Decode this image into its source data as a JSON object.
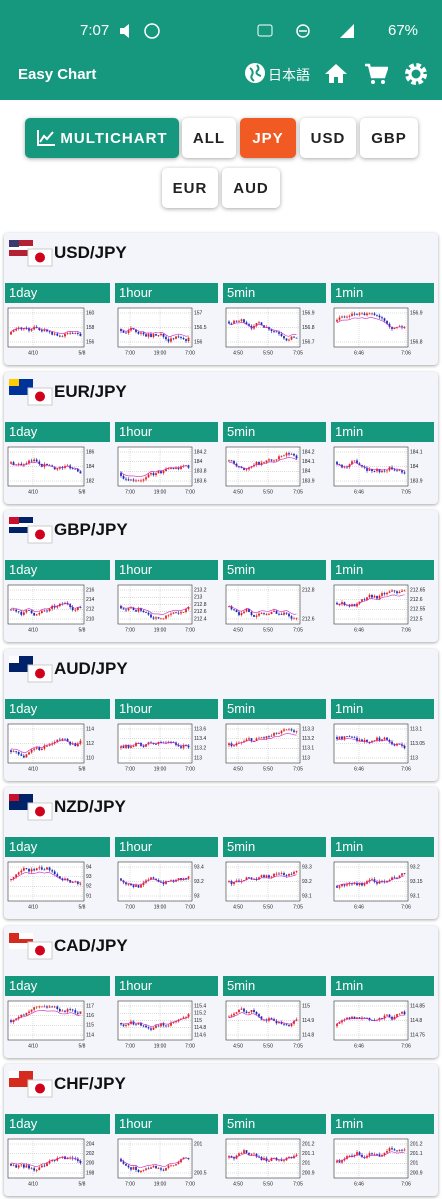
{
  "status": {
    "time": "7:07",
    "battery": "67%"
  },
  "appbar": {
    "title": "Easy Chart",
    "language": "日本語"
  },
  "filters": [
    "MULTICHART",
    "ALL",
    "JPY",
    "USD",
    "GBP",
    "EUR",
    "AUD"
  ],
  "cards": [
    {
      "pair": "USD/JPY",
      "panels": [
        {
          "label": "1day",
          "yticks": [
            "160",
            "158",
            "156"
          ],
          "xticks": [
            "4/10",
            "5/8"
          ]
        },
        {
          "label": "1hour",
          "yticks": [
            "157",
            "156.5",
            "156"
          ],
          "xticks": [
            "7:00",
            "19:00",
            "7:00"
          ]
        },
        {
          "label": "5min",
          "yticks": [
            "156.9",
            "156.8",
            "156.7"
          ],
          "xticks": [
            "4:50",
            "5:50",
            "7:05"
          ]
        },
        {
          "label": "1min",
          "yticks": [
            "156.9",
            "156.8"
          ],
          "xticks": [
            "6:46",
            "7:06"
          ]
        }
      ]
    },
    {
      "pair": "EUR/JPY",
      "panels": [
        {
          "label": "1day",
          "yticks": [
            "186",
            "184",
            "182"
          ],
          "xticks": [
            "4/10",
            "5/8"
          ]
        },
        {
          "label": "1hour",
          "yticks": [
            "184.2",
            "184",
            "183.8",
            "183.6"
          ],
          "xticks": [
            "7:00",
            "19:00",
            "7:00"
          ]
        },
        {
          "label": "5min",
          "yticks": [
            "184.2",
            "184.1",
            "184",
            "183.9"
          ],
          "xticks": [
            "4:50",
            "5:50",
            "7:05"
          ]
        },
        {
          "label": "1min",
          "yticks": [
            "184.1",
            "184",
            "183.9"
          ],
          "xticks": [
            "6:46",
            "7:05"
          ]
        }
      ]
    },
    {
      "pair": "GBP/JPY",
      "panels": [
        {
          "label": "1day",
          "yticks": [
            "216",
            "214",
            "212",
            "210"
          ],
          "xticks": [
            "4/10",
            "5/8"
          ]
        },
        {
          "label": "1hour",
          "yticks": [
            "213.2",
            "213",
            "212.8",
            "212.6",
            "212.4"
          ],
          "xticks": [
            "7:00",
            "19:00",
            "7:00"
          ]
        },
        {
          "label": "5min",
          "yticks": [
            "212.8",
            "212.6"
          ],
          "xticks": [
            "4:50",
            "5:50",
            "7:05"
          ]
        },
        {
          "label": "1min",
          "yticks": [
            "212.65",
            "212.6",
            "212.55",
            "212.5"
          ],
          "xticks": [
            "6:46",
            "7:06"
          ]
        }
      ]
    },
    {
      "pair": "AUD/JPY",
      "panels": [
        {
          "label": "1day",
          "yticks": [
            "114",
            "112",
            "110"
          ],
          "xticks": [
            "4/10",
            "5/8"
          ]
        },
        {
          "label": "1hour",
          "yticks": [
            "113.6",
            "113.4",
            "113.2",
            "113"
          ],
          "xticks": [
            "7:00",
            "19:00",
            "7:00"
          ]
        },
        {
          "label": "5min",
          "yticks": [
            "113.3",
            "113.2",
            "113.1",
            "113"
          ],
          "xticks": [
            "4:50",
            "5:50",
            "7:05"
          ]
        },
        {
          "label": "1min",
          "yticks": [
            "113.1",
            "113.05",
            "113"
          ],
          "xticks": [
            "6:46",
            "7:06"
          ]
        }
      ]
    },
    {
      "pair": "NZD/JPY",
      "panels": [
        {
          "label": "1day",
          "yticks": [
            "94",
            "93",
            "92",
            "91"
          ],
          "xticks": [
            "4/10",
            "5/8"
          ]
        },
        {
          "label": "1hour",
          "yticks": [
            "93.4",
            "93.2",
            "93"
          ],
          "xticks": [
            "7:00",
            "19:00",
            "7:00"
          ]
        },
        {
          "label": "5min",
          "yticks": [
            "93.3",
            "93.2",
            "93.1"
          ],
          "xticks": [
            "4:50",
            "5:50",
            "7:05"
          ]
        },
        {
          "label": "1min",
          "yticks": [
            "93.2",
            "93.15",
            "93.1"
          ],
          "xticks": [
            "6:46",
            "7:06"
          ]
        }
      ]
    },
    {
      "pair": "CAD/JPY",
      "panels": [
        {
          "label": "1day",
          "yticks": [
            "117",
            "116",
            "115",
            "114"
          ],
          "xticks": [
            "4/10",
            "5/8"
          ]
        },
        {
          "label": "1hour",
          "yticks": [
            "115.4",
            "115.2",
            "115",
            "114.8",
            "114.6"
          ],
          "xticks": [
            "7:00",
            "19:00",
            "7:00"
          ]
        },
        {
          "label": "5min",
          "yticks": [
            "115",
            "114.9",
            "114.8"
          ],
          "xticks": [
            "4:50",
            "5:50",
            "7:05"
          ]
        },
        {
          "label": "1min",
          "yticks": [
            "114.85",
            "114.8",
            "114.75"
          ],
          "xticks": [
            "6:46",
            "7:06"
          ]
        }
      ]
    },
    {
      "pair": "CHF/JPY",
      "panels": [
        {
          "label": "1day",
          "yticks": [
            "204",
            "202",
            "200",
            "198"
          ],
          "xticks": [
            "4/10",
            "5/8"
          ]
        },
        {
          "label": "1hour",
          "yticks": [
            "201",
            "200.5"
          ],
          "xticks": [
            "7:00",
            "19:00",
            "7:00"
          ]
        },
        {
          "label": "5min",
          "yticks": [
            "201.2",
            "201.1",
            "201",
            "200.9"
          ],
          "xticks": [
            "4:50",
            "5:50",
            "7:05"
          ]
        },
        {
          "label": "1min",
          "yticks": [
            "201.2",
            "201.1",
            "201",
            "200.9"
          ],
          "xticks": [
            "6:46",
            "7:06"
          ]
        }
      ]
    }
  ]
}
